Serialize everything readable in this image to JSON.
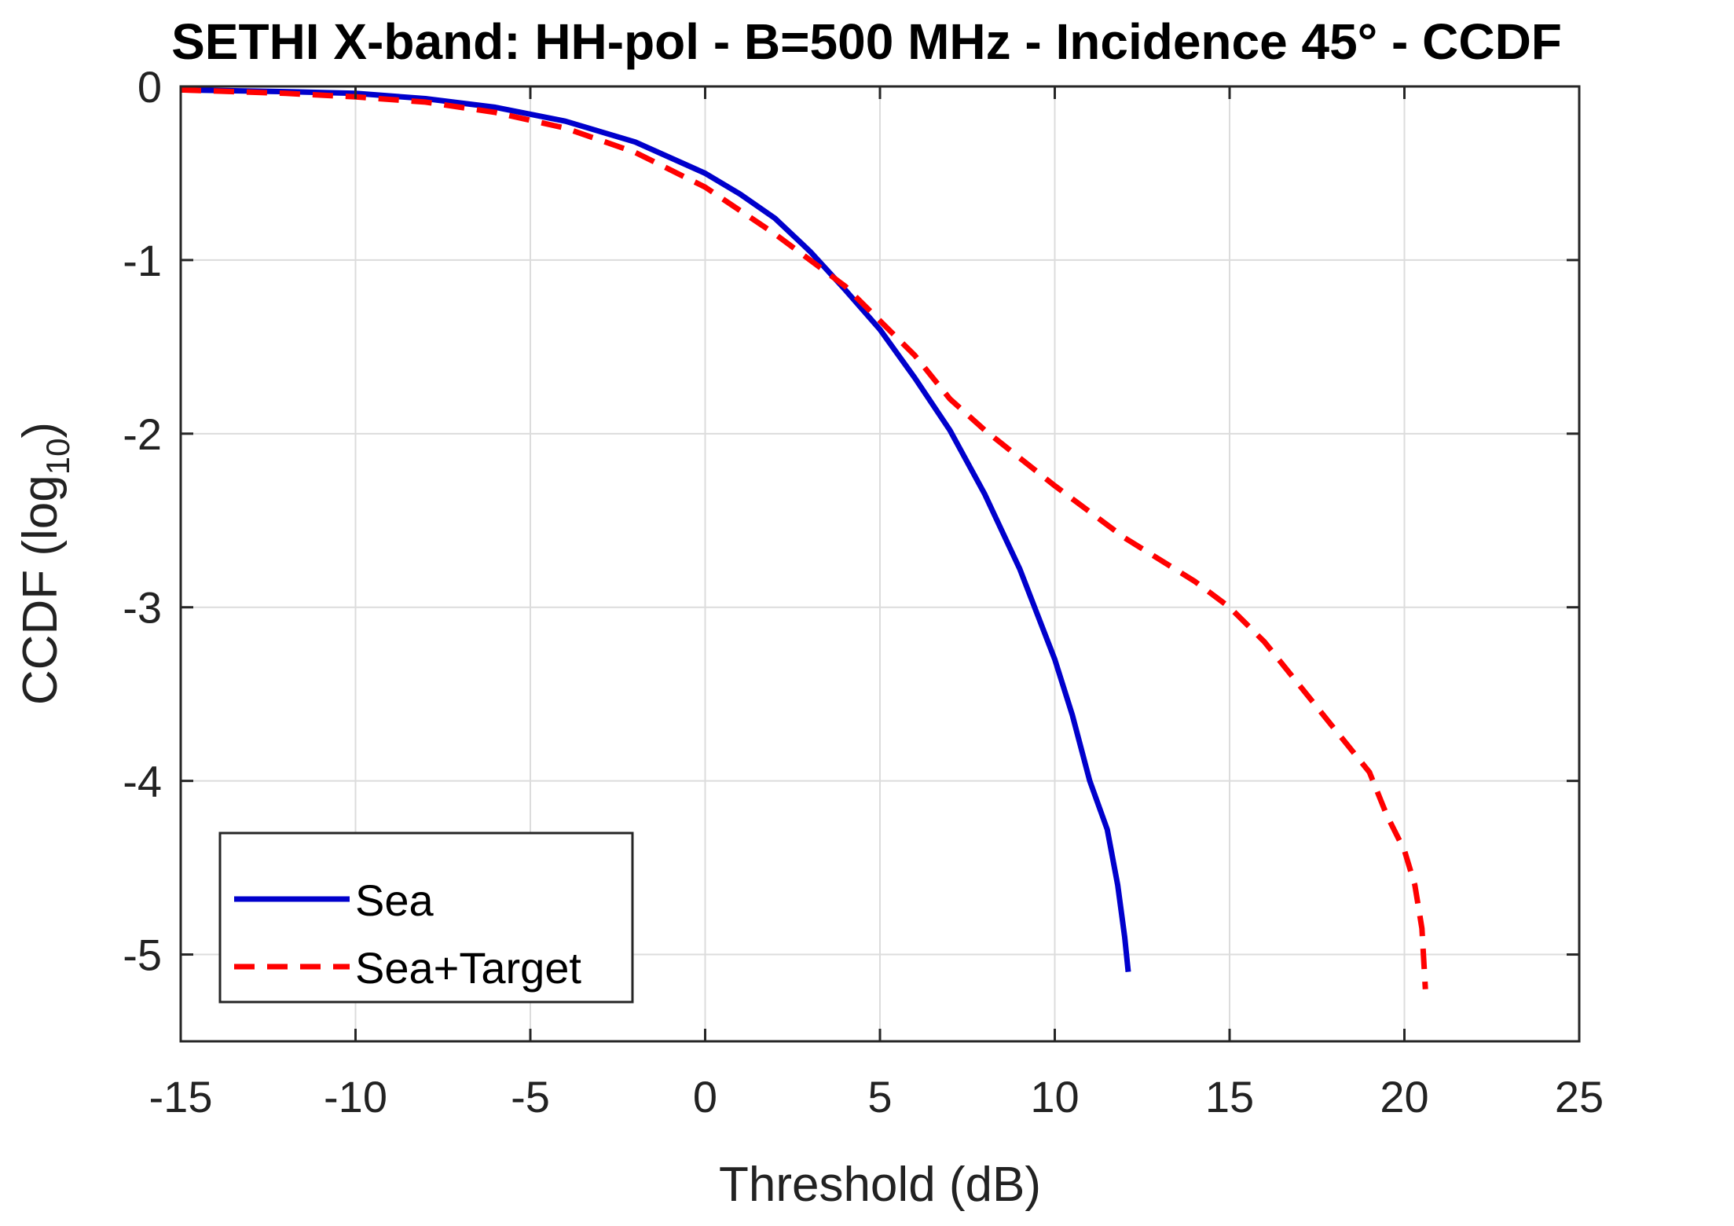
{
  "chart_data": {
    "type": "line",
    "title": "SETHI X-band: HH-pol - B=500 MHz - Incidence 45° - CCDF",
    "xlabel": "Threshold (dB)",
    "ylabel_main": "CCDF (log",
    "ylabel_sub": "10",
    "ylabel_close": ")",
    "xlim": [
      -15,
      25
    ],
    "ylim": [
      -5.5,
      0
    ],
    "x_ticks": [
      -15,
      -10,
      -5,
      0,
      5,
      10,
      15,
      20,
      25
    ],
    "x_tick_labels": [
      "-15",
      "-10",
      "-5",
      "0",
      "5",
      "10",
      "15",
      "20",
      "25"
    ],
    "y_ticks": [
      0,
      -1,
      -2,
      -3,
      -4,
      -5
    ],
    "y_tick_labels": [
      "0",
      "-1",
      "-2",
      "-3",
      "-4",
      "-5"
    ],
    "grid": true,
    "legend_position": "bottom-left",
    "series": [
      {
        "name": "Sea",
        "color": "#0000cc",
        "style": "solid",
        "points": [
          [
            -15,
            -0.02
          ],
          [
            -12,
            -0.03
          ],
          [
            -10,
            -0.04
          ],
          [
            -8,
            -0.07
          ],
          [
            -6,
            -0.12
          ],
          [
            -4,
            -0.2
          ],
          [
            -2,
            -0.32
          ],
          [
            0,
            -0.5
          ],
          [
            1,
            -0.62
          ],
          [
            2,
            -0.76
          ],
          [
            3,
            -0.95
          ],
          [
            4,
            -1.17
          ],
          [
            5,
            -1.4
          ],
          [
            6,
            -1.68
          ],
          [
            7,
            -1.98
          ],
          [
            8,
            -2.35
          ],
          [
            9,
            -2.78
          ],
          [
            10,
            -3.3
          ],
          [
            10.5,
            -3.62
          ],
          [
            11,
            -4.0
          ],
          [
            11.5,
            -4.28
          ],
          [
            11.8,
            -4.6
          ],
          [
            12,
            -4.9
          ],
          [
            12.1,
            -5.1
          ]
        ]
      },
      {
        "name": "Sea+Target",
        "color": "#ff0000",
        "style": "dashed",
        "points": [
          [
            -15,
            -0.02
          ],
          [
            -12,
            -0.04
          ],
          [
            -10,
            -0.06
          ],
          [
            -8,
            -0.09
          ],
          [
            -6,
            -0.15
          ],
          [
            -4,
            -0.24
          ],
          [
            -2,
            -0.38
          ],
          [
            0,
            -0.58
          ],
          [
            2,
            -0.85
          ],
          [
            4,
            -1.15
          ],
          [
            6,
            -1.55
          ],
          [
            7,
            -1.8
          ],
          [
            8,
            -1.98
          ],
          [
            10,
            -2.3
          ],
          [
            12,
            -2.6
          ],
          [
            14,
            -2.85
          ],
          [
            15,
            -3.0
          ],
          [
            16,
            -3.2
          ],
          [
            17,
            -3.45
          ],
          [
            18,
            -3.7
          ],
          [
            19,
            -3.95
          ],
          [
            19.5,
            -4.2
          ],
          [
            20,
            -4.4
          ],
          [
            20.3,
            -4.6
          ],
          [
            20.5,
            -4.85
          ],
          [
            20.6,
            -5.2
          ]
        ]
      }
    ]
  }
}
